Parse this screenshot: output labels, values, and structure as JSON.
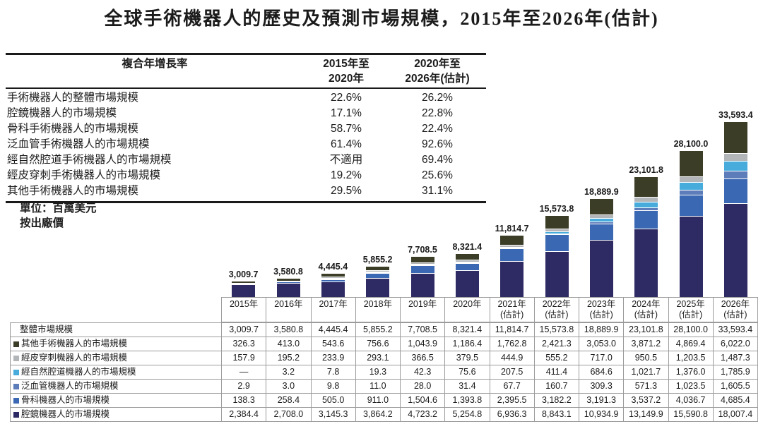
{
  "title": "全球手術機器人的歷史及預測市場規模，2015年至2026年(估計)",
  "unit_note_line1": "單位：百萬美元",
  "unit_note_line2": "按出廠價",
  "cagr_table": {
    "header_label": "複合年增長率",
    "header_col1": "2015年至\n2020年",
    "header_col2": "2020年至\n2026年(估計)",
    "rows": [
      {
        "label": "手術機器人的整體市場規模",
        "cagr_2015_2020": "22.6%",
        "cagr_2020_2026": "26.2%"
      },
      {
        "label": "腔鏡機器人的市場規模",
        "cagr_2015_2020": "17.1%",
        "cagr_2020_2026": "22.8%"
      },
      {
        "label": "骨科手術機器人的市場規模",
        "cagr_2015_2020": "58.7%",
        "cagr_2020_2026": "22.4%"
      },
      {
        "label": "泛血管手術機器人的市場規模",
        "cagr_2015_2020": "61.4%",
        "cagr_2020_2026": "92.6%"
      },
      {
        "label": "經自然腔道手術機器人的市場規模",
        "cagr_2015_2020": "不適用",
        "cagr_2020_2026": "69.4%"
      },
      {
        "label": "經皮穿刺手術機器人的市場規模",
        "cagr_2015_2020": "19.2%",
        "cagr_2020_2026": "25.6%"
      },
      {
        "label": "其他手術機器人的市場規模",
        "cagr_2015_2020": "29.5%",
        "cagr_2020_2026": "31.1%"
      }
    ]
  },
  "chart_data": {
    "type": "bar",
    "stacked": true,
    "title": "全球手術機器人的歷史及預測市場規模，2015年至2026年(估計)",
    "ylabel": "百萬美元 (按出廠價)",
    "ylim": [
      0,
      33593.4
    ],
    "grid": false,
    "legend_position": "left-table",
    "categories": [
      "2015年",
      "2016年",
      "2017年",
      "2018年",
      "2019年",
      "2020年",
      "2021年 (估計)",
      "2022年 (估計)",
      "2023年 (估計)",
      "2024年 (估計)",
      "2025年 (估計)",
      "2026年 (估計)"
    ],
    "total_labels": [
      "3,009.7",
      "3,580.8",
      "4,445.4",
      "5,855.2",
      "7,708.5",
      "8,321.4",
      "11,814.7",
      "15,573.8",
      "18,889.9",
      "23,101.8",
      "28,100.0",
      "33,593.4"
    ],
    "totals": [
      3009.7,
      3580.8,
      4445.4,
      5855.2,
      7708.5,
      8321.4,
      11814.7,
      15573.8,
      18889.9,
      23101.8,
      28100.0,
      33593.4
    ],
    "series": [
      {
        "name": "腔鏡機器人的市場規模",
        "color": "#2e2a63",
        "values": [
          2384.4,
          2708.0,
          3145.3,
          3864.2,
          4723.2,
          5254.8,
          6936.3,
          8843.1,
          10934.9,
          13149.9,
          15590.8,
          18007.4
        ]
      },
      {
        "name": "骨科機器人的市場規模",
        "color": "#3a68b2",
        "values": [
          138.3,
          258.4,
          505.0,
          911.0,
          1504.6,
          1393.8,
          2395.5,
          3182.2,
          3191.3,
          3537.2,
          4036.7,
          4685.4
        ]
      },
      {
        "name": "泛血管機器人的市場規模",
        "color": "#5d7cba",
        "values": [
          2.9,
          3.0,
          9.8,
          11.0,
          28.0,
          31.4,
          67.7,
          160.7,
          309.3,
          571.3,
          1023.5,
          1605.5
        ]
      },
      {
        "name": "經自然腔道機器人的市場規模",
        "color": "#47abdc",
        "values": [
          0,
          3.2,
          7.8,
          19.3,
          42.3,
          75.6,
          207.5,
          411.4,
          684.6,
          1021.7,
          1376.0,
          1785.9
        ]
      },
      {
        "name": "經皮穿刺機器人的市場規模",
        "color": "#b3b6b9",
        "values": [
          157.9,
          195.2,
          233.9,
          293.1,
          366.5,
          379.5,
          444.9,
          555.2,
          717.0,
          950.5,
          1203.5,
          1487.3
        ]
      },
      {
        "name": "其他手術機器人的市場規模",
        "color": "#3b3d26",
        "values": [
          326.3,
          413.0,
          543.6,
          756.6,
          1043.9,
          1186.4,
          1762.8,
          2421.3,
          3053.0,
          3871.2,
          4869.4,
          6022.0
        ]
      }
    ]
  },
  "years_row": [
    {
      "label": "2015年",
      "sub": ""
    },
    {
      "label": "2016年",
      "sub": ""
    },
    {
      "label": "2017年",
      "sub": ""
    },
    {
      "label": "2018年",
      "sub": ""
    },
    {
      "label": "2019年",
      "sub": ""
    },
    {
      "label": "2020年",
      "sub": ""
    },
    {
      "label": "2021年",
      "sub": "(估計)"
    },
    {
      "label": "2022年",
      "sub": "(估計)"
    },
    {
      "label": "2023年",
      "sub": "(估計)"
    },
    {
      "label": "2024年",
      "sub": "(估計)"
    },
    {
      "label": "2025年",
      "sub": "(估計)"
    },
    {
      "label": "2026年",
      "sub": "(估計)"
    }
  ],
  "bottom_table": {
    "rows": [
      {
        "label": "整體市場規模",
        "square_color": null,
        "values": [
          "3,009.7",
          "3,580.8",
          "4,445.4",
          "5,855.2",
          "7,708.5",
          "8,321.4",
          "11,814.7",
          "15,573.8",
          "18,889.9",
          "23,101.8",
          "28,100.0",
          "33,593.4"
        ]
      },
      {
        "label": "其他手術機器人的市場規模",
        "square_color": "#3b3d26",
        "values": [
          "326.3",
          "413.0",
          "543.6",
          "756.6",
          "1,043.9",
          "1,186.4",
          "1,762.8",
          "2,421.3",
          "3,053.0",
          "3,871.2",
          "4,869.4",
          "6,022.0"
        ]
      },
      {
        "label": "經皮穿刺機器人的市場規模",
        "square_color": "#b3b6b9",
        "values": [
          "157.9",
          "195.2",
          "233.9",
          "293.1",
          "366.5",
          "379.5",
          "444.9",
          "555.2",
          "717.0",
          "950.5",
          "1,203.5",
          "1,487.3"
        ]
      },
      {
        "label": "經自然腔道機器人的市場規模",
        "square_color": "#47abdc",
        "values": [
          "—",
          "3.2",
          "7.8",
          "19.3",
          "42.3",
          "75.6",
          "207.5",
          "411.4",
          "684.6",
          "1,021.7",
          "1,376.0",
          "1,785.9"
        ]
      },
      {
        "label": "泛血管機器人的市場規模",
        "square_color": "#5d7cba",
        "values": [
          "2.9",
          "3.0",
          "9.8",
          "11.0",
          "28.0",
          "31.4",
          "67.7",
          "160.7",
          "309.3",
          "571.3",
          "1,023.5",
          "1,605.5"
        ]
      },
      {
        "label": "骨科機器人的市場規模",
        "square_color": "#3a68b2",
        "values": [
          "138.3",
          "258.4",
          "505.0",
          "911.0",
          "1,504.6",
          "1,393.8",
          "2,395.5",
          "3,182.2",
          "3,191.3",
          "3,537.2",
          "4,036.7",
          "4,685.4"
        ]
      },
      {
        "label": "腔鏡機器人的市場規模",
        "square_color": "#2e2a63",
        "values": [
          "2,384.4",
          "2,708.0",
          "3,145.3",
          "3,864.2",
          "4,723.2",
          "5,254.8",
          "6,936.3",
          "8,843.1",
          "10,934.9",
          "13,149.9",
          "15,590.8",
          "18,007.4"
        ]
      }
    ]
  }
}
